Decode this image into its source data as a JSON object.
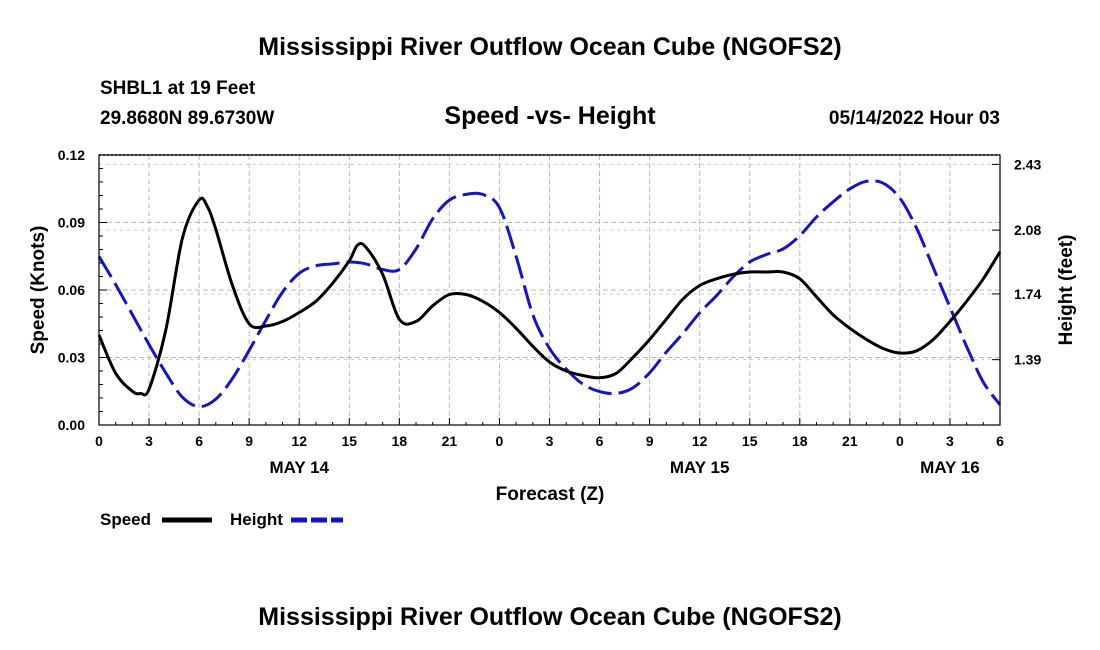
{
  "chart_data": {
    "type": "line",
    "title": "Mississippi River Outflow Ocean Cube (NGOFS2)",
    "title_repeat": "Mississippi River Outflow Ocean Cube (NGOFS2)",
    "station": "SHBL1 at 19 Feet",
    "location": "29.8680N  89.6730W",
    "subtitle": "Speed -vs- Height",
    "datetime": "05/14/2022 Hour 03",
    "xlabel": "Forecast (Z)",
    "ylabel_left": "Speed (Knots)",
    "ylabel_right": "Height (feet)",
    "x_range": [
      0,
      54
    ],
    "x_tick_labels": [
      "0",
      "3",
      "6",
      "9",
      "12",
      "15",
      "18",
      "21",
      "0",
      "3",
      "6",
      "9",
      "12",
      "15",
      "18",
      "21",
      "0",
      "3",
      "6"
    ],
    "date_labels": [
      {
        "label": "MAY 14",
        "hour": 12
      },
      {
        "label": "MAY 15",
        "hour": 36
      },
      {
        "label": "MAY 16",
        "hour": 51
      }
    ],
    "ylim_left": [
      0,
      0.12
    ],
    "y_left_ticks": [
      "0.00",
      "0.03",
      "0.06",
      "0.09",
      "0.12"
    ],
    "ylim_right": [
      1.042,
      2.48
    ],
    "y_right_ticks": [
      "1.39",
      "1.74",
      "2.08",
      "2.43"
    ],
    "legend": [
      {
        "name": "Speed",
        "color": "#000000",
        "dash": "solid"
      },
      {
        "name": "Height",
        "color": "#1515c8",
        "dash": "dashed"
      }
    ],
    "series": [
      {
        "name": "Speed",
        "axis": "left",
        "color": "#000000",
        "x": [
          0,
          1,
          2,
          2.5,
          3,
          4,
          5,
          6,
          6.5,
          7,
          8,
          9,
          10,
          11,
          12,
          13,
          14,
          15,
          15.5,
          16,
          17,
          18,
          19,
          20,
          21,
          22,
          23,
          24,
          25,
          26,
          27,
          28,
          29,
          30,
          31,
          32,
          33,
          34,
          35,
          36,
          37,
          38,
          39,
          40,
          41,
          42,
          43,
          44,
          45,
          46,
          47,
          48,
          49,
          50,
          51,
          52,
          53,
          54
        ],
        "values": [
          0.04,
          0.023,
          0.015,
          0.014,
          0.016,
          0.042,
          0.083,
          0.1,
          0.097,
          0.087,
          0.062,
          0.045,
          0.044,
          0.046,
          0.05,
          0.055,
          0.063,
          0.073,
          0.08,
          0.079,
          0.067,
          0.047,
          0.046,
          0.053,
          0.058,
          0.058,
          0.055,
          0.05,
          0.043,
          0.035,
          0.028,
          0.024,
          0.022,
          0.021,
          0.023,
          0.03,
          0.038,
          0.047,
          0.056,
          0.062,
          0.065,
          0.067,
          0.068,
          0.068,
          0.068,
          0.065,
          0.057,
          0.049,
          0.043,
          0.038,
          0.034,
          0.032,
          0.033,
          0.038,
          0.046,
          0.055,
          0.065,
          0.077
        ]
      },
      {
        "name": "Height",
        "axis": "right",
        "color": "#1515c8",
        "x": [
          0,
          1,
          2,
          3,
          4,
          5,
          6,
          7,
          8,
          9,
          10,
          11,
          12,
          13,
          14,
          15,
          16,
          17,
          18,
          19,
          20,
          21,
          22,
          23,
          24,
          25,
          26,
          27,
          28,
          29,
          30,
          31,
          32,
          33,
          34,
          35,
          36,
          37,
          38,
          39,
          40,
          41,
          42,
          43,
          44,
          45,
          46,
          47,
          48,
          49,
          50,
          51,
          52,
          53,
          54
        ],
        "values": [
          1.94,
          1.79,
          1.63,
          1.47,
          1.32,
          1.19,
          1.14,
          1.18,
          1.29,
          1.44,
          1.6,
          1.75,
          1.85,
          1.89,
          1.9,
          1.91,
          1.9,
          1.87,
          1.87,
          1.98,
          2.14,
          2.24,
          2.27,
          2.27,
          2.2,
          1.94,
          1.63,
          1.45,
          1.34,
          1.26,
          1.22,
          1.21,
          1.24,
          1.32,
          1.43,
          1.53,
          1.64,
          1.73,
          1.83,
          1.91,
          1.95,
          1.98,
          2.05,
          2.15,
          2.23,
          2.3,
          2.34,
          2.33,
          2.25,
          2.09,
          1.88,
          1.67,
          1.46,
          1.27,
          1.15
        ]
      }
    ]
  }
}
